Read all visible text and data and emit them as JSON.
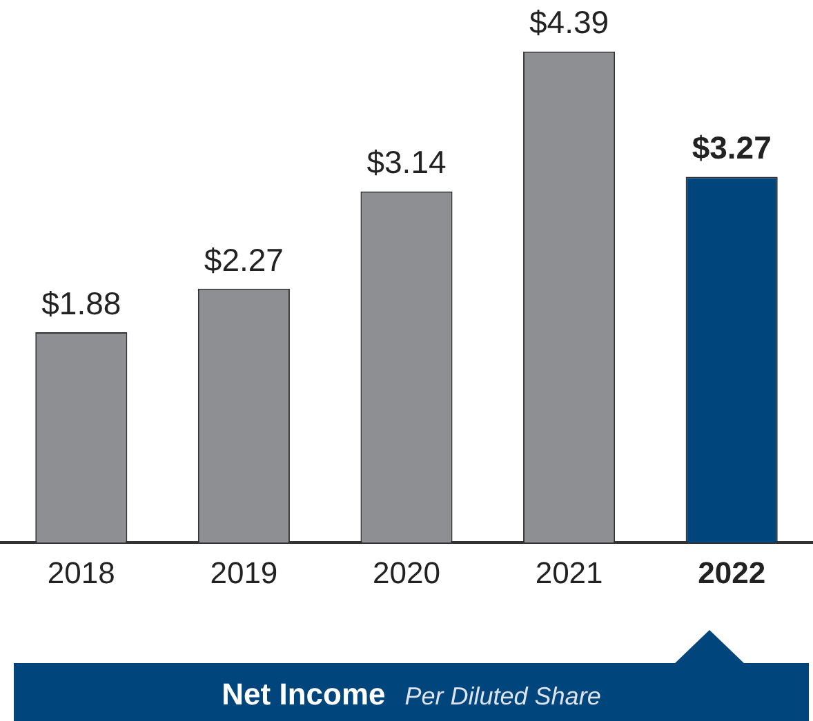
{
  "chart_data": {
    "type": "bar",
    "title": "Net Income",
    "subtitle": "Per Diluted Share",
    "categories": [
      "2018",
      "2019",
      "2020",
      "2021",
      "2022"
    ],
    "values": [
      1.88,
      2.27,
      3.14,
      4.39,
      3.27
    ],
    "colors": [
      "#8e8f93",
      "#8e8f93",
      "#8e8f93",
      "#8e8f93",
      "#00457c"
    ],
    "value_labels": [
      "$1.88",
      "$2.27",
      "$3.14",
      "$4.39",
      "$3.27"
    ],
    "grid": false,
    "legend": false
  }
}
